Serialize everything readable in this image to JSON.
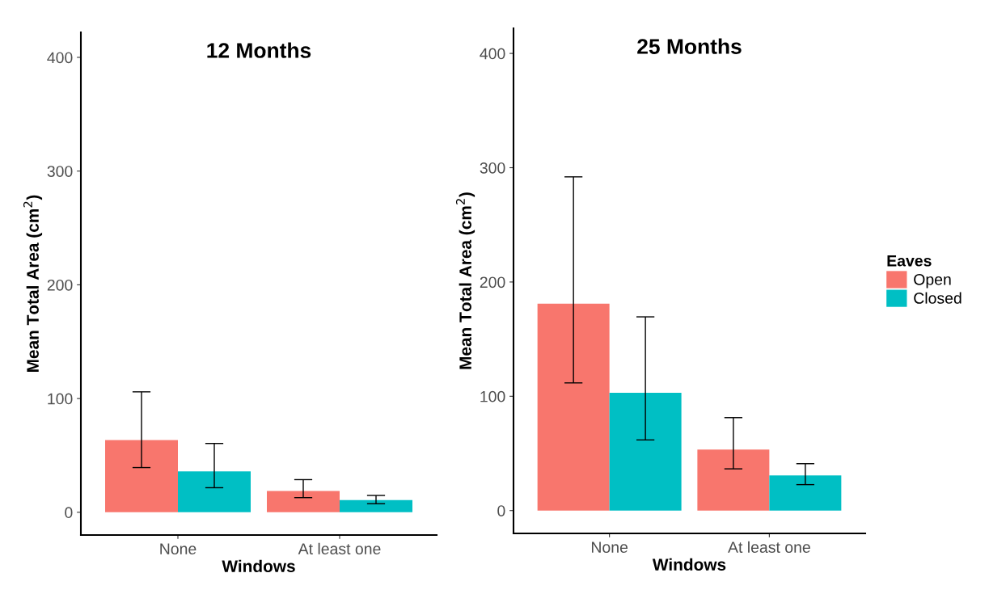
{
  "chart_data": [
    {
      "type": "bar",
      "title": "12 Months",
      "xlabel": "Windows",
      "ylabel": "Mean Total Area (cm$^{2}$)",
      "categories": [
        "None",
        "At least one"
      ],
      "ylim": [
        -20,
        422
      ],
      "yticks": [
        0,
        100,
        200,
        300,
        400
      ],
      "grid": false,
      "legend": false,
      "series": [
        {
          "color": "#f8766d",
          "values": [
            63.5,
            18.8
          ],
          "errors": [
            [
              39.3,
              105.9
            ],
            [
              12.9,
              28.7
            ]
          ]
        },
        {
          "color": "#00bfc4",
          "values": [
            36,
            10.8
          ],
          "errors": [
            [
              21.6,
              60.5
            ],
            [
              7.5,
              14.8
            ]
          ]
        }
      ]
    },
    {
      "type": "bar",
      "title": "25 Months",
      "xlabel": "Windows",
      "ylabel": "Mean Total Area (cm$^{2}$)",
      "categories": [
        "None",
        "At least one"
      ],
      "ylim": [
        -20,
        422
      ],
      "yticks": [
        0,
        100,
        200,
        300,
        400
      ],
      "grid": false,
      "legend": "right",
      "legend_title": "Eaves",
      "series": [
        {
          "name": "Open",
          "color": "#f8766d",
          "values": [
            181,
            53.4
          ],
          "errors": [
            [
              111.7,
              292
            ],
            [
              36.5,
              81.3
            ]
          ]
        },
        {
          "name": "Closed",
          "color": "#00bfc4",
          "values": [
            103,
            30.7
          ],
          "errors": [
            [
              61.8,
              169.5
            ],
            [
              22.7,
              41
            ]
          ]
        }
      ]
    }
  ]
}
